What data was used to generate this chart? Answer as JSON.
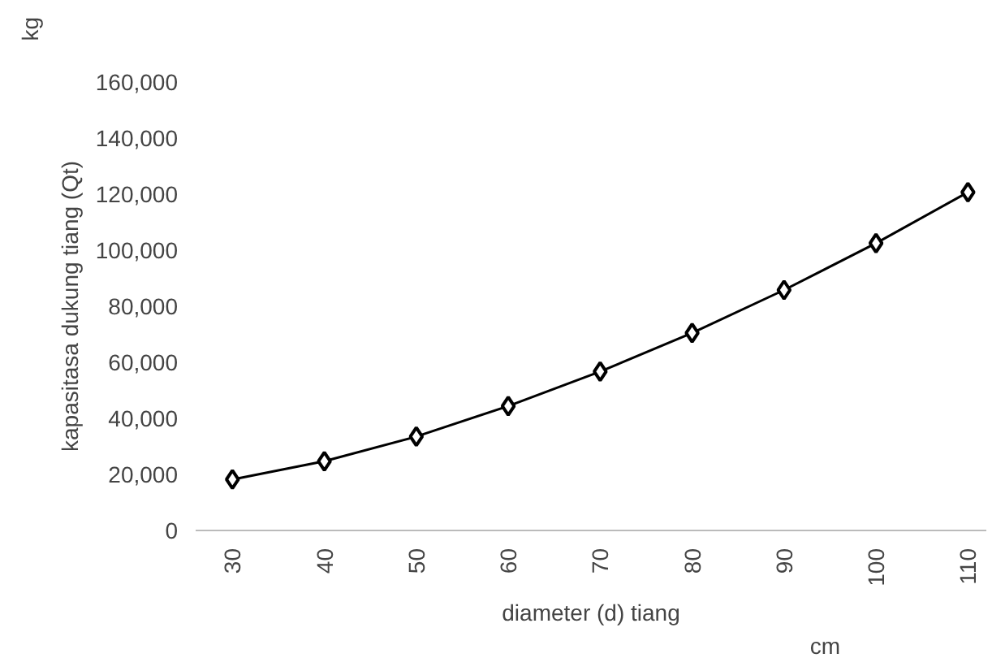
{
  "chart_data": {
    "type": "line",
    "xlabel": "diameter (d) tiang",
    "ylabel": "kapasitasa dukung tiang (Qt)",
    "annotations": [
      "kg",
      "cm"
    ],
    "x": [
      30,
      40,
      50,
      60,
      70,
      80,
      90,
      100,
      110
    ],
    "series": [
      {
        "color": "#000000",
        "values": [
          18200,
          24700,
          33500,
          44400,
          56700,
          70500,
          85800,
          102500,
          120700
        ]
      }
    ],
    "xlim": [
      26,
      112
    ],
    "xticks": [
      30,
      40,
      50,
      60,
      70,
      80,
      90,
      100,
      110
    ],
    "ylim": [
      0,
      160000
    ],
    "yticks": [
      {
        "value": 0,
        "label": "0"
      },
      {
        "value": 20000,
        "label": "20,000"
      },
      {
        "value": 40000,
        "label": "40,000"
      },
      {
        "value": 60000,
        "label": "60,000"
      },
      {
        "value": 80000,
        "label": "80,000"
      },
      {
        "value": 100000,
        "label": "100,000"
      },
      {
        "value": 120000,
        "label": "120,000"
      },
      {
        "value": 140000,
        "label": "140,000"
      },
      {
        "value": 160000,
        "label": "160,000"
      }
    ],
    "grid": false,
    "marker": "diamond",
    "line_style": "solid"
  }
}
